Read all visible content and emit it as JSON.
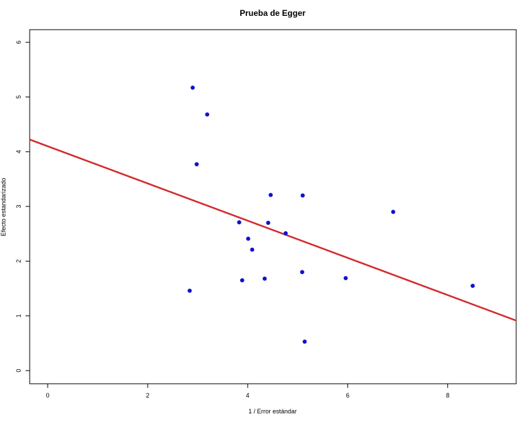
{
  "chart_data": {
    "type": "scatter",
    "title": "Prueba de Egger",
    "x_label": "1 / Error estándar",
    "y_label": "Efecto estandarizado",
    "x": [
      2.9,
      3.19,
      2.98,
      4.46,
      5.1,
      6.91,
      3.83,
      4.41,
      4.76,
      4.01,
      4.09,
      5.09,
      5.96,
      4.34,
      3.89,
      2.84,
      8.5,
      5.14
    ],
    "values": [
      5.17,
      4.68,
      3.77,
      3.21,
      3.2,
      2.9,
      2.71,
      2.7,
      2.51,
      2.41,
      2.21,
      1.8,
      1.69,
      1.68,
      1.65,
      1.46,
      1.55,
      0.53
    ],
    "color": "#1010d0",
    "fit": {
      "intercept": 4.1,
      "slope": -0.34,
      "color": "#d42a2a"
    },
    "xlim": [
      -0.36,
      9.37
    ],
    "ylim": [
      -0.24,
      6.23
    ],
    "xticks": [
      0,
      2,
      4,
      6,
      8
    ],
    "yticks": [
      0,
      1,
      2,
      3,
      4,
      5,
      6
    ]
  }
}
